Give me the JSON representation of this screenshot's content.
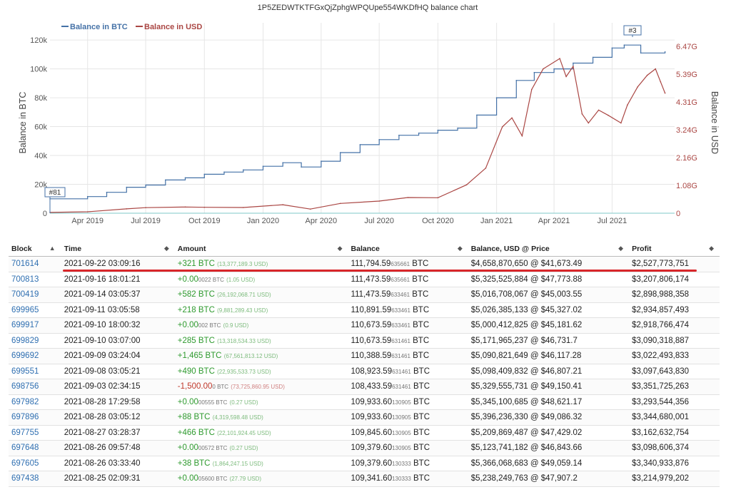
{
  "chart_data": {
    "type": "line",
    "title": "1P5ZEDWTKTFGxQjZphgWPQUpe554WKDfHQ balance chart",
    "ylabel": "Balance in BTC",
    "y2label": "Balance in USD",
    "ylim": [
      0,
      125000
    ],
    "y2lim": [
      0,
      7000000000
    ],
    "y_ticks": [
      "0",
      "20k",
      "40k",
      "60k",
      "80k",
      "100k",
      "120k"
    ],
    "y2_ticks": [
      "0",
      "1.08G",
      "2.16G",
      "3.24G",
      "4.31G",
      "5.39G",
      "6.47G"
    ],
    "x_ticks": [
      "Apr 2019",
      "Jul 2019",
      "Oct 2019",
      "Jan 2020",
      "Apr 2020",
      "Jul 2020",
      "Oct 2020",
      "Jan 2021",
      "Apr 2021",
      "Jul 2021"
    ],
    "grid": true,
    "legend_position": "top-left",
    "annotations": [
      "#81",
      "#3"
    ],
    "series": [
      {
        "name": "Balance in BTC",
        "color": "#4572a7",
        "points": [
          [
            "2019-02-01",
            10000
          ],
          [
            "2019-04-01",
            11500
          ],
          [
            "2019-05-01",
            14500
          ],
          [
            "2019-06-01",
            18000
          ],
          [
            "2019-07-01",
            19500
          ],
          [
            "2019-08-01",
            23000
          ],
          [
            "2019-09-01",
            24500
          ],
          [
            "2019-10-01",
            27000
          ],
          [
            "2019-11-01",
            28500
          ],
          [
            "2019-12-01",
            30000
          ],
          [
            "2020-01-01",
            32500
          ],
          [
            "2020-02-01",
            35000
          ],
          [
            "2020-03-01",
            32000
          ],
          [
            "2020-04-01",
            36000
          ],
          [
            "2020-05-01",
            42000
          ],
          [
            "2020-06-01",
            47500
          ],
          [
            "2020-07-01",
            51000
          ],
          [
            "2020-08-01",
            54000
          ],
          [
            "2020-09-01",
            55500
          ],
          [
            "2020-10-01",
            57500
          ],
          [
            "2020-11-01",
            59000
          ],
          [
            "2020-12-01",
            68000
          ],
          [
            "2021-01-01",
            80000
          ],
          [
            "2021-02-01",
            92000
          ],
          [
            "2021-03-01",
            97500
          ],
          [
            "2021-04-01",
            100000
          ],
          [
            "2021-05-01",
            104000
          ],
          [
            "2021-06-01",
            108000
          ],
          [
            "2021-07-01",
            114500
          ],
          [
            "2021-07-20",
            116500
          ],
          [
            "2021-08-15",
            111000
          ],
          [
            "2021-09-22",
            111794
          ]
        ]
      },
      {
        "name": "Balance in USD",
        "color": "#aa4643",
        "points": [
          [
            "2019-02-01",
            30000000
          ],
          [
            "2019-04-01",
            55000000
          ],
          [
            "2019-06-01",
            170000000
          ],
          [
            "2019-07-01",
            215000000
          ],
          [
            "2019-09-01",
            240000000
          ],
          [
            "2019-10-01",
            230000000
          ],
          [
            "2019-12-01",
            220000000
          ],
          [
            "2020-02-01",
            330000000
          ],
          [
            "2020-03-15",
            160000000
          ],
          [
            "2020-05-01",
            380000000
          ],
          [
            "2020-07-01",
            470000000
          ],
          [
            "2020-08-15",
            610000000
          ],
          [
            "2020-10-01",
            600000000
          ],
          [
            "2020-11-15",
            1100000000
          ],
          [
            "2020-12-15",
            1750000000
          ],
          [
            "2021-01-10",
            3350000000
          ],
          [
            "2021-01-25",
            3700000000
          ],
          [
            "2021-02-10",
            3000000000
          ],
          [
            "2021-02-25",
            4800000000
          ],
          [
            "2021-03-15",
            5600000000
          ],
          [
            "2021-04-10",
            6000000000
          ],
          [
            "2021-04-20",
            5300000000
          ],
          [
            "2021-05-01",
            5700000000
          ],
          [
            "2021-05-15",
            3850000000
          ],
          [
            "2021-05-25",
            3500000000
          ],
          [
            "2021-06-10",
            4000000000
          ],
          [
            "2021-06-25",
            3800000000
          ],
          [
            "2021-07-15",
            3500000000
          ],
          [
            "2021-07-25",
            4200000000
          ],
          [
            "2021-08-10",
            4900000000
          ],
          [
            "2021-08-25",
            5350000000
          ],
          [
            "2021-09-07",
            5600000000
          ],
          [
            "2021-09-15",
            5100000000
          ],
          [
            "2021-09-22",
            4660000000
          ]
        ]
      }
    ]
  },
  "table": {
    "headers": [
      "Block",
      "Time",
      "Amount",
      "Balance",
      "Balance, USD @ Price",
      "Profit"
    ],
    "sort_icon": "sort-arrows-icon",
    "rows": [
      {
        "block": "701614",
        "time": "2021-09-22 03:09:16",
        "amount": "+321 BTC",
        "amount_usd": "(13,377,189.3 USD)",
        "sign": "pos",
        "bal_main": "111,794.59",
        "bal_small": "635661",
        "bal_unit": "BTC",
        "usd_price": "$4,658,870,650 @ $41,673.49",
        "profit": "$2,527,773,751"
      },
      {
        "block": "700813",
        "time": "2021-09-16 18:01:21",
        "amount": "+0.00",
        "amount_tail": "0022 BTC",
        "amount_usd": "(1.05 USD)",
        "sign": "zero",
        "bal_main": "111,473.59",
        "bal_small": "635661",
        "bal_unit": "BTC",
        "usd_price": "$5,325,525,884 @ $47,773.88",
        "profit": "$3,207,806,174"
      },
      {
        "block": "700419",
        "time": "2021-09-14 03:05:37",
        "amount": "+582 BTC",
        "amount_usd": "(26,192,068.71 USD)",
        "sign": "pos",
        "bal_main": "111,473.59",
        "bal_small": "633461",
        "bal_unit": "BTC",
        "usd_price": "$5,016,708,067 @ $45,003.55",
        "profit": "$2,898,988,358"
      },
      {
        "block": "699965",
        "time": "2021-09-11 03:05:58",
        "amount": "+218 BTC",
        "amount_usd": "(9,881,289.43 USD)",
        "sign": "pos",
        "bal_main": "110,891.59",
        "bal_small": "633461",
        "bal_unit": "BTC",
        "usd_price": "$5,026,385,133 @ $45,327.02",
        "profit": "$2,934,857,493"
      },
      {
        "block": "699917",
        "time": "2021-09-10 18:00:32",
        "amount": "+0.00",
        "amount_tail": "002 BTC",
        "amount_usd": "(0.9 USD)",
        "sign": "zero",
        "bal_main": "110,673.59",
        "bal_small": "633461",
        "bal_unit": "BTC",
        "usd_price": "$5,000,412,825 @ $45,181.62",
        "profit": "$2,918,766,474"
      },
      {
        "block": "699829",
        "time": "2021-09-10 03:07:00",
        "amount": "+285 BTC",
        "amount_usd": "(13,318,534.33 USD)",
        "sign": "pos",
        "bal_main": "110,673.59",
        "bal_small": "631461",
        "bal_unit": "BTC",
        "usd_price": "$5,171,965,237 @ $46,731.7",
        "profit": "$3,090,318,887"
      },
      {
        "block": "699692",
        "time": "2021-09-09 03:24:04",
        "amount": "+1,465 BTC",
        "amount_usd": "(67,561,813.12 USD)",
        "sign": "pos",
        "bal_main": "110,388.59",
        "bal_small": "631461",
        "bal_unit": "BTC",
        "usd_price": "$5,090,821,649 @ $46,117.28",
        "profit": "$3,022,493,833"
      },
      {
        "block": "699551",
        "time": "2021-09-08 03:05:21",
        "amount": "+490 BTC",
        "amount_usd": "(22,935,533.73 USD)",
        "sign": "pos",
        "bal_main": "108,923.59",
        "bal_small": "631461",
        "bal_unit": "BTC",
        "usd_price": "$5,098,409,832 @ $46,807.21",
        "profit": "$3,097,643,830"
      },
      {
        "block": "698756",
        "time": "2021-09-03 02:34:15",
        "amount": "-1,500.00",
        "amount_tail": "0 BTC",
        "amount_usd": "(73,725,860.95 USD)",
        "sign": "neg",
        "bal_main": "108,433.59",
        "bal_small": "631461",
        "bal_unit": "BTC",
        "usd_price": "$5,329,555,731 @ $49,150.41",
        "profit": "$3,351,725,263"
      },
      {
        "block": "697982",
        "time": "2021-08-28 17:29:58",
        "amount": "+0.00",
        "amount_tail": "00555 BTC",
        "amount_usd": "(0.27 USD)",
        "sign": "zero",
        "bal_main": "109,933.60",
        "bal_small": "130905",
        "bal_unit": "BTC",
        "usd_price": "$5,345,100,685 @ $48,621.17",
        "profit": "$3,293,544,356"
      },
      {
        "block": "697896",
        "time": "2021-08-28 03:05:12",
        "amount": "+88 BTC",
        "amount_usd": "(4,319,598.48 USD)",
        "sign": "pos",
        "bal_main": "109,933.60",
        "bal_small": "130905",
        "bal_unit": "BTC",
        "usd_price": "$5,396,236,330 @ $49,086.32",
        "profit": "$3,344,680,001"
      },
      {
        "block": "697755",
        "time": "2021-08-27 03:28:37",
        "amount": "+466 BTC",
        "amount_usd": "(22,101,924.45 USD)",
        "sign": "pos",
        "bal_main": "109,845.60",
        "bal_small": "130905",
        "bal_unit": "BTC",
        "usd_price": "$5,209,869,487 @ $47,429.02",
        "profit": "$3,162,632,754"
      },
      {
        "block": "697648",
        "time": "2021-08-26 09:57:48",
        "amount": "+0.00",
        "amount_tail": "00572 BTC",
        "amount_usd": "(0.27 USD)",
        "sign": "zero",
        "bal_main": "109,379.60",
        "bal_small": "130905",
        "bal_unit": "BTC",
        "usd_price": "$5,123,741,182 @ $46,843.66",
        "profit": "$3,098,606,374"
      },
      {
        "block": "697605",
        "time": "2021-08-26 03:33:40",
        "amount": "+38 BTC",
        "amount_usd": "(1,864,247.15 USD)",
        "sign": "pos",
        "bal_main": "109,379.60",
        "bal_small": "130333",
        "bal_unit": "BTC",
        "usd_price": "$5,366,068,683 @ $49,059.14",
        "profit": "$3,340,933,876"
      },
      {
        "block": "697438",
        "time": "2021-08-25 02:09:31",
        "amount": "+0.00",
        "amount_tail": "05600 BTC",
        "amount_usd": "(27.79 USD)",
        "sign": "zero",
        "bal_main": "109,341.60",
        "bal_small": "130333",
        "bal_unit": "BTC",
        "usd_price": "$5,238,249,763 @ $47,907.2",
        "profit": "$3,214,979,202"
      }
    ]
  }
}
